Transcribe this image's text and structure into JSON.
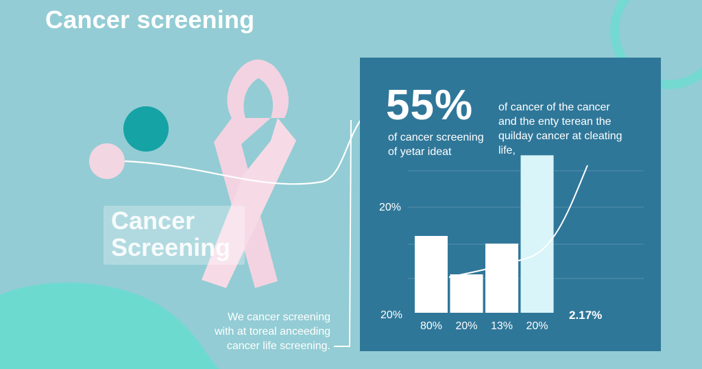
{
  "page": {
    "title": "Cancer screening",
    "label": "Cancer\nScreening",
    "caption": "We cancer screening\nwith at toreal anceeding\ncancer life screening."
  },
  "panel": {
    "big_stat": "55%",
    "stat_desc": "of cancer screening\nof yetar ideat",
    "side_desc": "of cancer of the cancer\nand the enty terean the\nquilday cancer at cleating\nlife,"
  },
  "colors": {
    "background": "#93ccd4",
    "panel": "#2f7799",
    "ribbon": "#f3d3e1",
    "teal": "#15a3a5",
    "bar": "#ffffff",
    "highlight_bar": "#d9f5f9",
    "mint": "#6ddad0"
  },
  "icons": [
    "awareness-ribbon-icon",
    "teal-dot",
    "pink-dot"
  ],
  "chart_data": {
    "type": "bar",
    "categories": [
      "80%",
      "20%",
      "13%",
      "20%"
    ],
    "values": [
      20,
      10,
      18,
      41
    ],
    "highlight_index": 3,
    "y_tick_labels": [
      "20%",
      "20%"
    ],
    "end_label": "2.17%",
    "trend_line": true,
    "grid": true,
    "ylim": [
      0,
      45
    ]
  }
}
